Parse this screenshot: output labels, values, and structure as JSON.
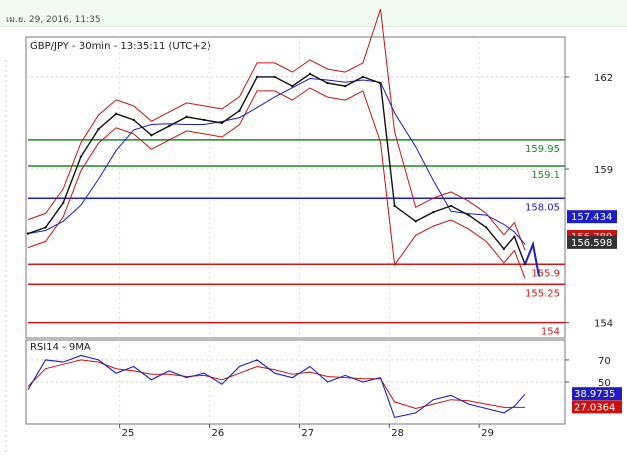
{
  "header": {
    "datetime": "เม.ย. 29, 2016, 11:35"
  },
  "chart_data": [
    {
      "type": "line",
      "title": "GBP/JPY - 30min - 13:35:11 (UTC+2)",
      "ylim": [
        153.5,
        163.3
      ],
      "y_ticks": [
        154,
        159,
        162
      ],
      "x_ticks": [
        "25",
        "26",
        "27",
        "28",
        "29"
      ],
      "price_series": [
        [
          0,
          156.9
        ],
        [
          0.5,
          157.1
        ],
        [
          1,
          157.9
        ],
        [
          1.5,
          159.4
        ],
        [
          2,
          160.3
        ],
        [
          2.5,
          160.8
        ],
        [
          3,
          160.6
        ],
        [
          3.5,
          160.1
        ],
        [
          4,
          160.4
        ],
        [
          4.5,
          160.7
        ],
        [
          5,
          160.6
        ],
        [
          5.5,
          160.5
        ],
        [
          6,
          160.9
        ],
        [
          6.5,
          162.0
        ],
        [
          7,
          162.0
        ],
        [
          7.5,
          161.7
        ],
        [
          8,
          162.1
        ],
        [
          8.5,
          161.8
        ],
        [
          9,
          161.7
        ],
        [
          9.5,
          162.0
        ],
        [
          10,
          161.8
        ],
        [
          10.4,
          157.8
        ],
        [
          11,
          157.3
        ],
        [
          11.5,
          157.6
        ],
        [
          12,
          157.8
        ],
        [
          12.5,
          157.5
        ],
        [
          13,
          157.1
        ],
        [
          13.5,
          156.4
        ],
        [
          13.8,
          156.8
        ],
        [
          14.1,
          155.9
        ]
      ],
      "levels": [
        {
          "value": 159.95,
          "label": "159.95",
          "color": "#1a8a1a"
        },
        {
          "value": 159.1,
          "label": "159.1",
          "color": "#1a8a1a"
        },
        {
          "value": 158.05,
          "label": "158.05",
          "color": "#1c1cc8"
        },
        {
          "value": 155.9,
          "label": "155.9",
          "color": "#d01818"
        },
        {
          "value": 155.25,
          "label": "155.25",
          "color": "#d01818"
        },
        {
          "value": 154,
          "label": "154",
          "color": "#d01818"
        }
      ],
      "price_boxes": [
        {
          "value": 157.434,
          "label": "157.434",
          "bg": "#1c1cc8"
        },
        {
          "value": 156.789,
          "label": "156.789",
          "bg": "#cc1111"
        },
        {
          "value": 156.598,
          "label": "156.598",
          "bg": "#333333"
        }
      ]
    },
    {
      "type": "line",
      "title": "RSI14 - 9MA",
      "ylim": [
        12,
        88
      ],
      "y_ticks": [
        50,
        70
      ],
      "rsi": [
        [
          0,
          43
        ],
        [
          0.5,
          70
        ],
        [
          1,
          68
        ],
        [
          1.5,
          74
        ],
        [
          2,
          70
        ],
        [
          2.5,
          58
        ],
        [
          3,
          64
        ],
        [
          3.5,
          52
        ],
        [
          4,
          60
        ],
        [
          4.5,
          54
        ],
        [
          5,
          58
        ],
        [
          5.5,
          48
        ],
        [
          6,
          64
        ],
        [
          6.5,
          70
        ],
        [
          7,
          58
        ],
        [
          7.5,
          54
        ],
        [
          8,
          64
        ],
        [
          8.5,
          50
        ],
        [
          9,
          56
        ],
        [
          9.5,
          50
        ],
        [
          10,
          54
        ],
        [
          10.4,
          18
        ],
        [
          11,
          22
        ],
        [
          11.5,
          34
        ],
        [
          12,
          38
        ],
        [
          12.5,
          30
        ],
        [
          13,
          26
        ],
        [
          13.5,
          22
        ],
        [
          13.8,
          28
        ],
        [
          14.1,
          38.97
        ]
      ],
      "ma": [
        [
          0,
          46
        ],
        [
          0.5,
          62
        ],
        [
          1,
          66
        ],
        [
          1.5,
          70
        ],
        [
          2,
          68
        ],
        [
          2.5,
          62
        ],
        [
          3,
          60
        ],
        [
          3.5,
          57
        ],
        [
          4,
          57
        ],
        [
          4.5,
          55
        ],
        [
          5,
          56
        ],
        [
          5.5,
          52
        ],
        [
          6,
          58
        ],
        [
          6.5,
          64
        ],
        [
          7,
          61
        ],
        [
          7.5,
          57
        ],
        [
          8,
          59
        ],
        [
          8.5,
          55
        ],
        [
          9,
          54
        ],
        [
          9.5,
          53
        ],
        [
          10,
          53
        ],
        [
          10.4,
          32
        ],
        [
          11,
          26
        ],
        [
          11.5,
          30
        ],
        [
          12,
          34
        ],
        [
          12.5,
          33
        ],
        [
          13,
          30
        ],
        [
          13.5,
          27
        ],
        [
          13.8,
          27
        ],
        [
          14.1,
          27.04
        ]
      ],
      "price_boxes": [
        {
          "value": 38.9735,
          "label": "38.9735",
          "bg": "#1c1cc8"
        },
        {
          "value": 27.0364,
          "label": "27.0364",
          "bg": "#cc1111"
        }
      ]
    }
  ]
}
